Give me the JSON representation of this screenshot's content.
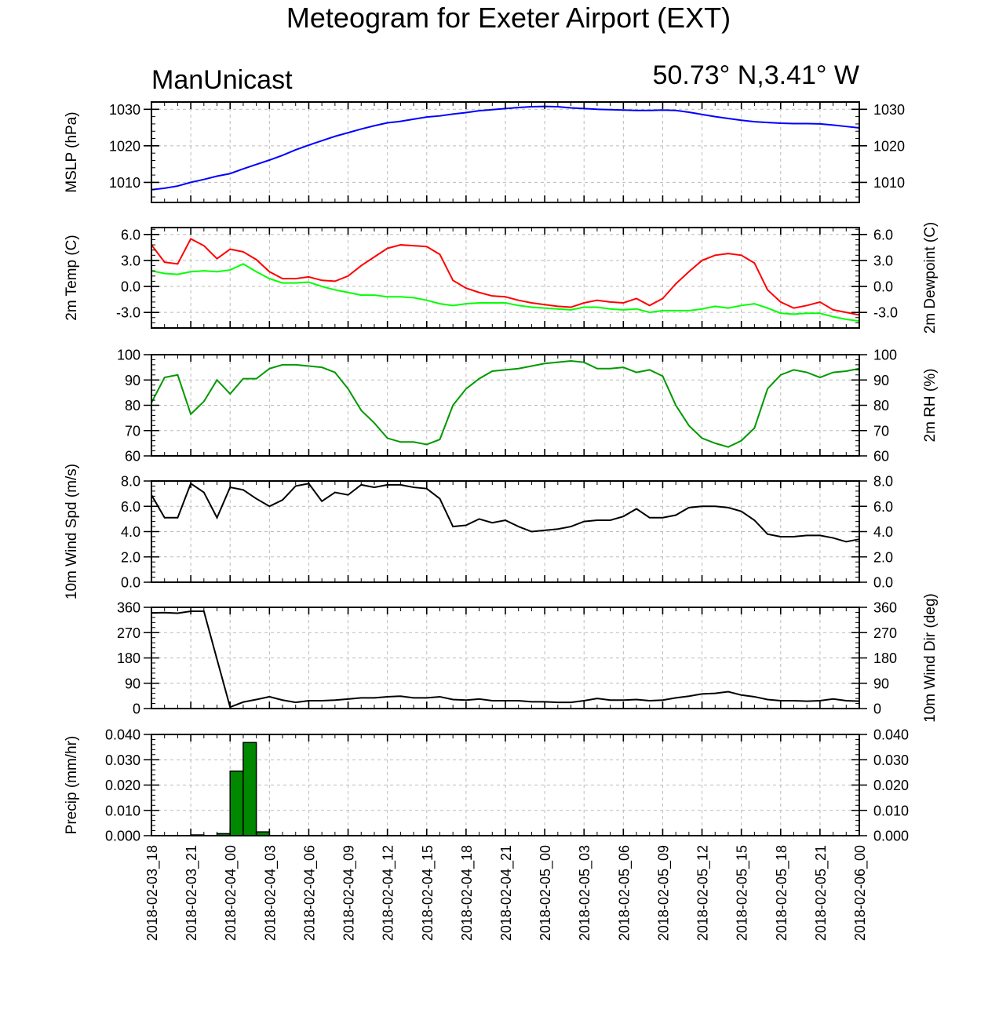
{
  "title": "Meteogram for Exeter Airport (EXT)",
  "left_caption": "ManUnicast",
  "right_caption": "50.73° N,3.41° W",
  "chart_data": {
    "type": "line",
    "x_ticks": [
      "2018-02-03_18",
      "2018-02-03_21",
      "2018-02-04_00",
      "2018-02-04_03",
      "2018-02-04_06",
      "2018-02-04_09",
      "2018-02-04_12",
      "2018-02-04_15",
      "2018-02-04_18",
      "2018-02-04_21",
      "2018-02-05_00",
      "2018-02-05_03",
      "2018-02-05_06",
      "2018-02-05_09",
      "2018-02-05_12",
      "2018-02-05_15",
      "2018-02-05_18",
      "2018-02-05_21",
      "2018-02-06_00"
    ],
    "x_hours": [
      0,
      1,
      2,
      3,
      4,
      5,
      6,
      7,
      8,
      9,
      10,
      11,
      12,
      13,
      14,
      15,
      16,
      17,
      18,
      19,
      20,
      21,
      22,
      23,
      24,
      25,
      26,
      27,
      28,
      29,
      30,
      31,
      32,
      33,
      34,
      35,
      36,
      37,
      38,
      39,
      40,
      41,
      42,
      43,
      44,
      45,
      46,
      47,
      48,
      49,
      50,
      51,
      52,
      53,
      54
    ],
    "panels": [
      {
        "ylabel_left": "MSLP (hPa)",
        "ylabel_right": "",
        "ylim": [
          1004.5,
          1032
        ],
        "ticks_left": [
          "1010",
          "1020",
          "1030"
        ],
        "ticks_right": [
          "1010",
          "1020",
          "1030"
        ],
        "tick_values": [
          1010,
          1020,
          1030
        ],
        "minor_step": 2,
        "series": [
          {
            "color": "#0000ff",
            "values": [
              1008,
              1008.4,
              1009,
              1010,
              1010.8,
              1011.7,
              1012.4,
              1013.7,
              1014.9,
              1016.1,
              1017.4,
              1018.9,
              1020.2,
              1021.4,
              1022.6,
              1023.6,
              1024.6,
              1025.5,
              1026.3,
              1026.7,
              1027.3,
              1027.9,
              1028.2,
              1028.7,
              1029.1,
              1029.6,
              1029.9,
              1030.2,
              1030.5,
              1030.7,
              1030.8,
              1030.7,
              1030.4,
              1030.2,
              1030,
              1029.9,
              1029.8,
              1029.7,
              1029.7,
              1029.8,
              1029.7,
              1029.2,
              1028.6,
              1028,
              1027.5,
              1027,
              1026.6,
              1026.4,
              1026.2,
              1026.1,
              1026.1,
              1026,
              1025.7,
              1025.3,
              1024.9
            ]
          }
        ]
      },
      {
        "ylabel_left": "2m Temp (C)",
        "ylabel_right": "2m Dewpoint (C)",
        "ylim": [
          -4.8,
          6.8
        ],
        "ticks_left": [
          "-3.0",
          "0.0",
          "3.0",
          "6.0"
        ],
        "ticks_right": [
          "-3.0",
          "0.0",
          "3.0",
          "6.0"
        ],
        "tick_values": [
          -3,
          0,
          3,
          6
        ],
        "minor_step": 0.6,
        "series": [
          {
            "color": "#ff0000",
            "values": [
              4.8,
              2.8,
              2.6,
              5.5,
              4.7,
              3.2,
              4.3,
              4.0,
              3.1,
              1.7,
              0.9,
              0.9,
              1.1,
              0.7,
              0.6,
              1.2,
              2.4,
              3.4,
              4.4,
              4.8,
              4.7,
              4.6,
              3.7,
              0.7,
              -0.2,
              -0.7,
              -1.1,
              -1.2,
              -1.6,
              -1.9,
              -2.1,
              -2.3,
              -2.4,
              -1.9,
              -1.6,
              -1.8,
              -1.9,
              -1.4,
              -2.2,
              -1.4,
              0.3,
              1.7,
              3.0,
              3.6,
              3.8,
              3.6,
              2.7,
              -0.4,
              -1.8,
              -2.5,
              -2.2,
              -1.8,
              -2.7,
              -3.0,
              -3.3
            ]
          },
          {
            "color": "#00ff00",
            "values": [
              1.8,
              1.5,
              1.4,
              1.7,
              1.8,
              1.7,
              1.9,
              2.6,
              1.7,
              0.9,
              0.4,
              0.4,
              0.5,
              0.0,
              -0.4,
              -0.7,
              -1.0,
              -1.0,
              -1.2,
              -1.2,
              -1.3,
              -1.6,
              -2.0,
              -2.2,
              -2.0,
              -1.9,
              -1.9,
              -1.9,
              -2.2,
              -2.4,
              -2.5,
              -2.6,
              -2.7,
              -2.4,
              -2.4,
              -2.6,
              -2.7,
              -2.6,
              -3.0,
              -2.8,
              -2.8,
              -2.8,
              -2.6,
              -2.3,
              -2.5,
              -2.2,
              -2.0,
              -2.5,
              -3.1,
              -3.2,
              -3.1,
              -3.1,
              -3.5,
              -3.8,
              -4.0
            ]
          }
        ]
      },
      {
        "ylabel_left": "",
        "ylabel_right": "2m RH (%)",
        "ylim": [
          60,
          100
        ],
        "ticks_left": [
          "60",
          "70",
          "80",
          "90",
          "100"
        ],
        "ticks_right": [
          "60",
          "70",
          "80",
          "90",
          "100"
        ],
        "tick_values": [
          60,
          70,
          80,
          90,
          100
        ],
        "minor_step": 2,
        "series": [
          {
            "color": "#009900",
            "values": [
              81,
              91,
              92,
              76.5,
              81.5,
              90,
              84.5,
              90.5,
              90.5,
              94.5,
              96,
              96,
              95.5,
              95,
              93,
              86.5,
              78,
              73,
              67,
              65.5,
              65.5,
              64.5,
              66.5,
              80,
              86.5,
              90.5,
              93.5,
              94,
              94.5,
              95.5,
              96.5,
              97,
              97.5,
              97,
              94.5,
              94.5,
              95,
              93,
              94,
              91.5,
              80,
              72,
              67,
              65,
              63.5,
              66,
              71,
              86.5,
              92,
              94,
              93,
              91,
              93,
              93.5,
              94.5
            ]
          }
        ]
      },
      {
        "ylabel_left": "10m Wind Spd (m/s)",
        "ylabel_right": "",
        "ylim": [
          0,
          8
        ],
        "ticks_left": [
          "0.0",
          "2.0",
          "4.0",
          "6.0",
          "8.0"
        ],
        "ticks_right": [
          "0.0",
          "2.0",
          "4.0",
          "6.0",
          "8.0"
        ],
        "tick_values": [
          0,
          2,
          4,
          6,
          8
        ],
        "minor_step": 0.4,
        "series": [
          {
            "color": "#000000",
            "values": [
              6.9,
              5.1,
              5.1,
              7.8,
              7.1,
              5.1,
              7.5,
              7.3,
              6.6,
              6.0,
              6.5,
              7.6,
              7.8,
              6.4,
              7.1,
              6.9,
              7.7,
              7.5,
              7.7,
              7.7,
              7.5,
              7.4,
              6.6,
              4.4,
              4.5,
              5.0,
              4.7,
              4.9,
              4.4,
              4.0,
              4.1,
              4.2,
              4.4,
              4.8,
              4.9,
              4.9,
              5.2,
              5.8,
              5.1,
              5.1,
              5.3,
              5.9,
              6.0,
              6.0,
              5.9,
              5.6,
              4.9,
              3.8,
              3.6,
              3.6,
              3.7,
              3.7,
              3.5,
              3.2,
              3.4
            ]
          }
        ]
      },
      {
        "ylabel_left": "",
        "ylabel_right": "10m Wind Dir (deg)",
        "ylim": [
          0,
          360
        ],
        "ticks_left": [
          "0",
          "90",
          "180",
          "270",
          "360"
        ],
        "ticks_right": [
          "0",
          "90",
          "180",
          "270",
          "360"
        ],
        "tick_values": [
          0,
          90,
          180,
          270,
          360
        ],
        "minor_step": 18,
        "series": [
          {
            "color": "#000000",
            "values": [
              340,
              341,
              339,
              346,
              346,
              175,
              5,
              23,
              32,
              42,
              30,
              22,
              28,
              28,
              30,
              34,
              38,
              38,
              42,
              44,
              38,
              38,
              42,
              32,
              30,
              34,
              28,
              28,
              28,
              24,
              24,
              22,
              22,
              28,
              36,
              30,
              30,
              32,
              28,
              30,
              38,
              44,
              52,
              54,
              60,
              48,
              42,
              32,
              28,
              28,
              26,
              28,
              34,
              28,
              26
            ]
          }
        ]
      },
      {
        "ylabel_left": "Precip (mm/hr)",
        "ylabel_right": "",
        "ylim": [
          0,
          0.04
        ],
        "ticks_left": [
          "0.000",
          "0.010",
          "0.020",
          "0.030",
          "0.040"
        ],
        "ticks_right": [
          "0.000",
          "0.010",
          "0.020",
          "0.030",
          "0.040"
        ],
        "tick_values": [
          0,
          0.01,
          0.02,
          0.03,
          0.04
        ],
        "minor_step": 0.002,
        "bars": {
          "color": "#008800",
          "x_hours": [
            3,
            5,
            6,
            7,
            8
          ],
          "values": [
            0.0003,
            0.0008,
            0.0255,
            0.0368,
            0.0015
          ]
        }
      }
    ]
  }
}
